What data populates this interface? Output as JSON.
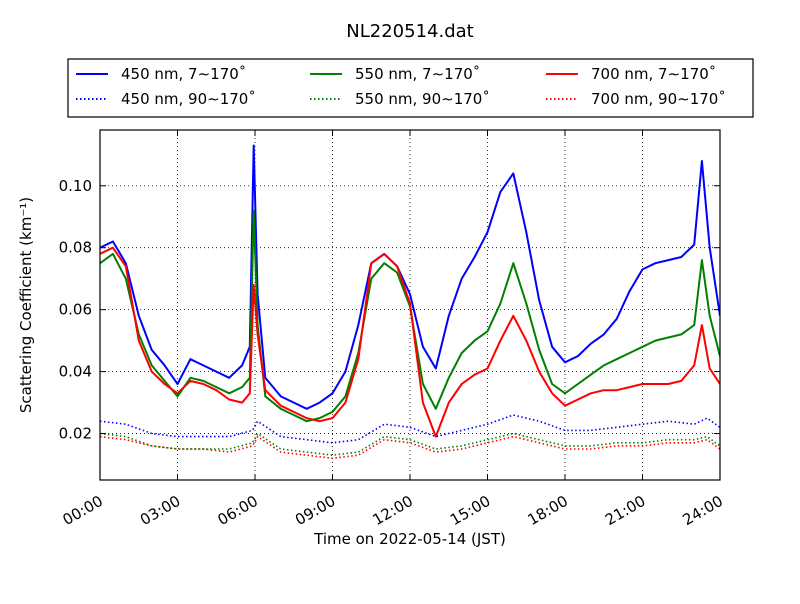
{
  "chart_data": {
    "type": "line",
    "title": "NL220514.dat",
    "xlabel": "Time on 2022-05-14 (JST)",
    "ylabel": "Scattering Coefficient (km⁻¹)",
    "x_unit": "hours",
    "xlim": [
      0,
      24
    ],
    "ylim": [
      0.005,
      0.118
    ],
    "x_ticks": [
      0,
      3,
      6,
      9,
      12,
      15,
      18,
      21,
      24
    ],
    "x_tick_labels": [
      "00:00",
      "03:00",
      "06:00",
      "09:00",
      "12:00",
      "15:00",
      "18:00",
      "21:00",
      "24:00"
    ],
    "y_ticks": [
      0.02,
      0.04,
      0.06,
      0.08,
      0.1
    ],
    "y_tick_labels": [
      "0.02",
      "0.04",
      "0.06",
      "0.08",
      "0.10"
    ],
    "grid": true,
    "legend_position": "top (above plot, 3 columns)",
    "colors": {
      "450": "#0000ff",
      "550": "#008000",
      "700": "#ff0000"
    },
    "series": [
      {
        "name": "450 nm, 7∼170˚",
        "color": "#0000ff",
        "style": "solid",
        "x": [
          0,
          0.5,
          1,
          1.5,
          2,
          2.5,
          3,
          3.5,
          4,
          4.5,
          5,
          5.5,
          5.8,
          5.95,
          6.1,
          6.4,
          7,
          7.5,
          8,
          8.5,
          9,
          9.5,
          10,
          10.5,
          11,
          11.5,
          12,
          12.5,
          13,
          13.5,
          14,
          14.5,
          15,
          15.5,
          16,
          16.5,
          17,
          17.5,
          18,
          18.5,
          19,
          19.5,
          20,
          20.5,
          21,
          21.5,
          22,
          22.5,
          23,
          23.3,
          23.6,
          24
        ],
        "y": [
          0.08,
          0.082,
          0.075,
          0.058,
          0.047,
          0.042,
          0.036,
          0.044,
          0.042,
          0.04,
          0.038,
          0.042,
          0.048,
          0.113,
          0.065,
          0.038,
          0.032,
          0.03,
          0.028,
          0.03,
          0.033,
          0.04,
          0.055,
          0.075,
          0.078,
          0.074,
          0.065,
          0.048,
          0.041,
          0.058,
          0.07,
          0.077,
          0.085,
          0.098,
          0.104,
          0.085,
          0.063,
          0.048,
          0.043,
          0.045,
          0.049,
          0.052,
          0.057,
          0.066,
          0.073,
          0.075,
          0.076,
          0.077,
          0.081,
          0.108,
          0.08,
          0.058
        ]
      },
      {
        "name": "550 nm, 7∼170˚",
        "color": "#008000",
        "style": "solid",
        "x": [
          0,
          0.5,
          1,
          1.5,
          2,
          2.5,
          3,
          3.5,
          4,
          4.5,
          5,
          5.5,
          5.8,
          5.95,
          6.1,
          6.4,
          7,
          7.5,
          8,
          8.5,
          9,
          9.5,
          10,
          10.5,
          11,
          11.5,
          12,
          12.5,
          13,
          13.5,
          14,
          14.5,
          15,
          15.5,
          16,
          16.5,
          17,
          17.5,
          18,
          18.5,
          19,
          19.5,
          20,
          20.5,
          21,
          21.5,
          22,
          22.5,
          23,
          23.3,
          23.6,
          24
        ],
        "y": [
          0.075,
          0.078,
          0.07,
          0.052,
          0.042,
          0.037,
          0.032,
          0.038,
          0.037,
          0.035,
          0.033,
          0.035,
          0.038,
          0.092,
          0.055,
          0.032,
          0.028,
          0.026,
          0.024,
          0.025,
          0.027,
          0.032,
          0.046,
          0.07,
          0.075,
          0.072,
          0.061,
          0.036,
          0.028,
          0.038,
          0.046,
          0.05,
          0.053,
          0.062,
          0.075,
          0.062,
          0.047,
          0.036,
          0.033,
          0.036,
          0.039,
          0.042,
          0.044,
          0.046,
          0.048,
          0.05,
          0.051,
          0.052,
          0.055,
          0.076,
          0.058,
          0.045
        ]
      },
      {
        "name": "700 nm, 7∼170˚",
        "color": "#ff0000",
        "style": "solid",
        "x": [
          0,
          0.5,
          1,
          1.5,
          2,
          2.5,
          3,
          3.5,
          4,
          4.5,
          5,
          5.5,
          5.8,
          5.95,
          6.1,
          6.4,
          7,
          7.5,
          8,
          8.5,
          9,
          9.5,
          10,
          10.5,
          11,
          11.5,
          12,
          12.5,
          13,
          13.5,
          14,
          14.5,
          15,
          15.5,
          16,
          16.5,
          17,
          17.5,
          18,
          18.5,
          19,
          19.5,
          20,
          20.5,
          21,
          21.5,
          22,
          22.5,
          23,
          23.3,
          23.6,
          24
        ],
        "y": [
          0.078,
          0.08,
          0.074,
          0.05,
          0.04,
          0.036,
          0.033,
          0.037,
          0.036,
          0.034,
          0.031,
          0.03,
          0.033,
          0.068,
          0.052,
          0.034,
          0.029,
          0.027,
          0.025,
          0.024,
          0.025,
          0.03,
          0.044,
          0.075,
          0.078,
          0.074,
          0.062,
          0.03,
          0.019,
          0.03,
          0.036,
          0.039,
          0.041,
          0.05,
          0.058,
          0.05,
          0.04,
          0.033,
          0.029,
          0.031,
          0.033,
          0.034,
          0.034,
          0.035,
          0.036,
          0.036,
          0.036,
          0.037,
          0.042,
          0.055,
          0.041,
          0.036
        ]
      },
      {
        "name": "450 nm, 90∼170˚",
        "color": "#0000ff",
        "style": "dotted",
        "x": [
          0,
          1,
          2,
          3,
          4,
          5,
          5.9,
          6.1,
          7,
          8,
          9,
          10,
          11,
          12,
          13,
          14,
          15,
          16,
          17,
          18,
          19,
          20,
          21,
          22,
          23,
          23.5,
          24
        ],
        "y": [
          0.024,
          0.023,
          0.02,
          0.019,
          0.019,
          0.019,
          0.021,
          0.024,
          0.019,
          0.018,
          0.017,
          0.018,
          0.023,
          0.022,
          0.019,
          0.021,
          0.023,
          0.026,
          0.024,
          0.021,
          0.021,
          0.022,
          0.023,
          0.024,
          0.023,
          0.025,
          0.022
        ]
      },
      {
        "name": "550 nm, 90∼170˚",
        "color": "#008000",
        "style": "dotted",
        "x": [
          0,
          1,
          2,
          3,
          4,
          5,
          5.9,
          6.1,
          7,
          8,
          9,
          10,
          11,
          12,
          13,
          14,
          15,
          16,
          17,
          18,
          19,
          20,
          21,
          22,
          23,
          23.5,
          24
        ],
        "y": [
          0.02,
          0.019,
          0.016,
          0.015,
          0.015,
          0.015,
          0.017,
          0.02,
          0.015,
          0.014,
          0.013,
          0.014,
          0.019,
          0.018,
          0.015,
          0.016,
          0.018,
          0.02,
          0.018,
          0.016,
          0.016,
          0.017,
          0.017,
          0.018,
          0.018,
          0.019,
          0.016
        ]
      },
      {
        "name": "700 nm, 90∼170˚",
        "color": "#ff0000",
        "style": "dotted",
        "x": [
          0,
          1,
          2,
          3,
          4,
          5,
          5.9,
          6.1,
          7,
          8,
          9,
          10,
          11,
          12,
          13,
          14,
          15,
          16,
          17,
          18,
          19,
          20,
          21,
          22,
          23,
          23.5,
          24
        ],
        "y": [
          0.019,
          0.018,
          0.016,
          0.015,
          0.015,
          0.014,
          0.016,
          0.019,
          0.014,
          0.013,
          0.012,
          0.013,
          0.018,
          0.017,
          0.014,
          0.015,
          0.017,
          0.019,
          0.017,
          0.015,
          0.015,
          0.016,
          0.016,
          0.017,
          0.017,
          0.018,
          0.015
        ]
      }
    ]
  }
}
